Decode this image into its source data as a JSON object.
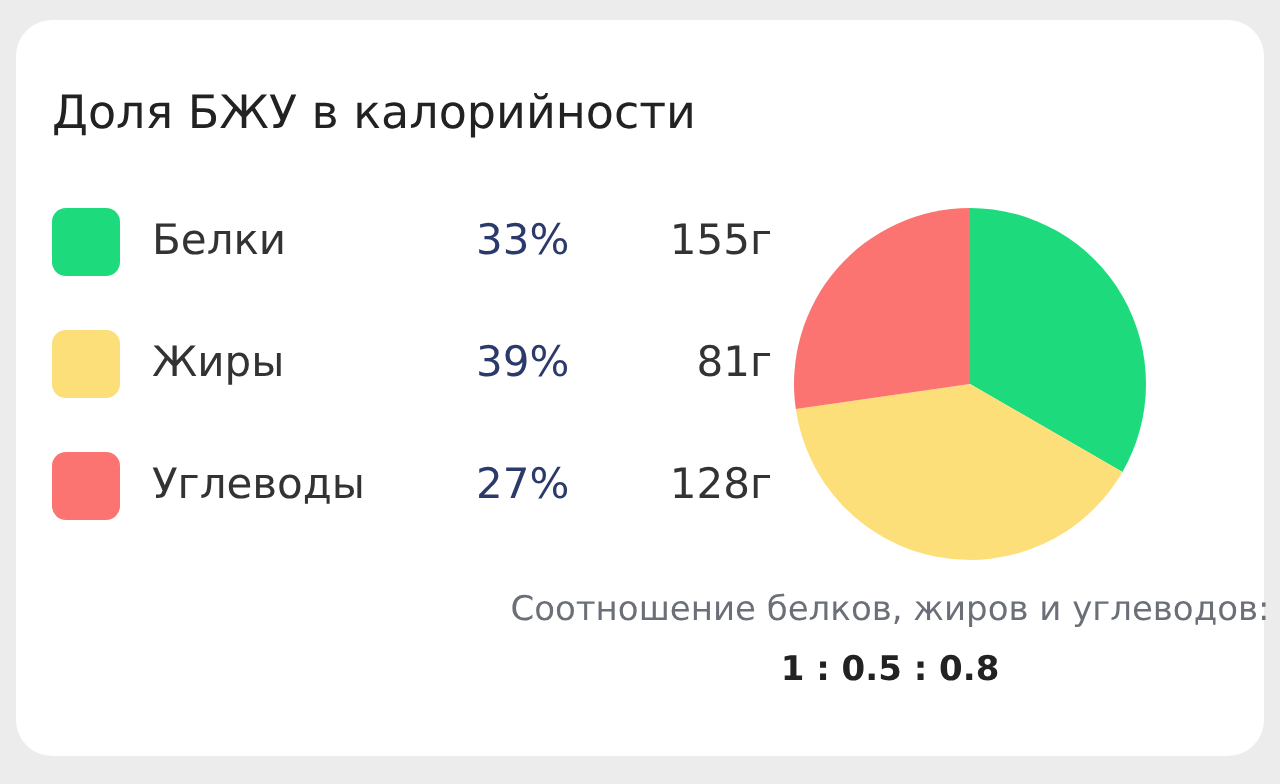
{
  "chart_data": {
    "type": "pie",
    "title": "Доля БЖУ в калорийности",
    "categories": [
      "Белки",
      "Жиры",
      "Углеводы"
    ],
    "values": [
      33,
      39,
      27
    ],
    "value_labels": [
      "33%",
      "39%",
      "27%"
    ],
    "colors": [
      "#1ddb7c",
      "#fddf7a",
      "#fc7472"
    ],
    "legend": "left",
    "annotations": [
      "155г",
      "81г",
      "128г",
      "Соотношение белков, жиров и углеводов:",
      "1 : 0.5 : 0.8"
    ]
  }
}
